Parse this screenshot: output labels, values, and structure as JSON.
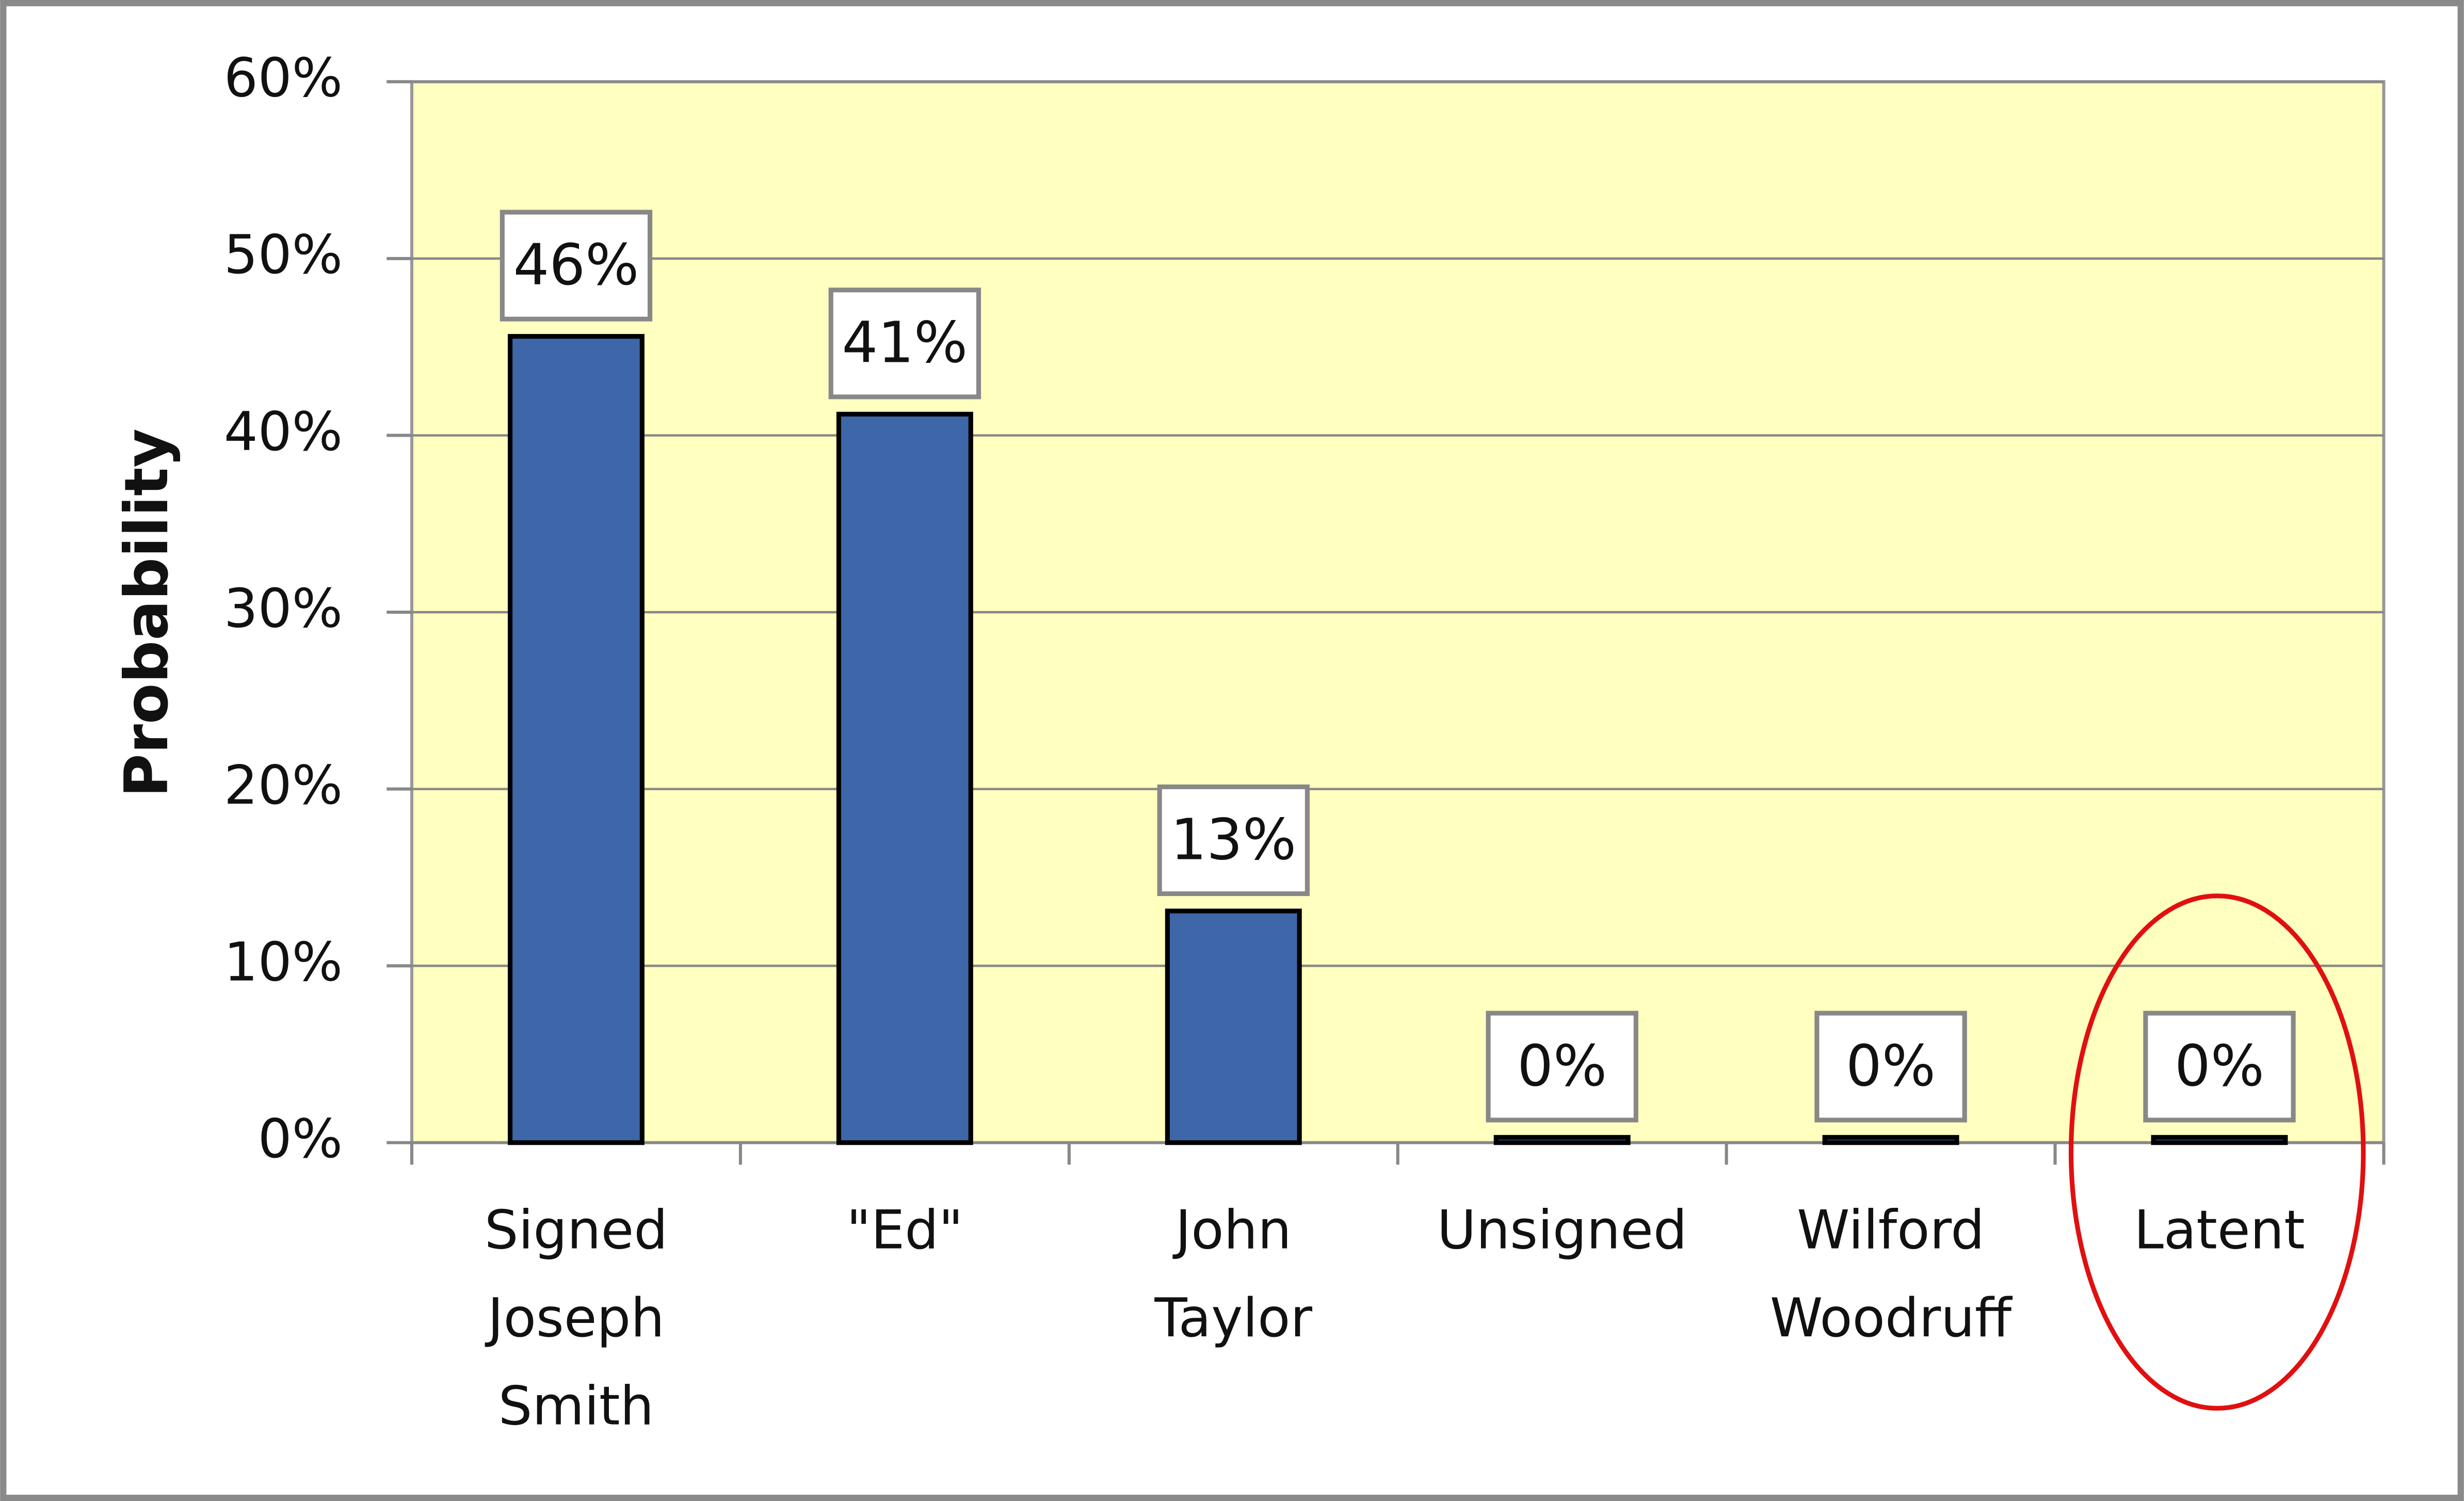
{
  "chart_data": {
    "type": "bar",
    "ylabel": "Probability",
    "categories": [
      "Signed Joseph Smith",
      "\"Ed\"",
      "John Taylor",
      "Unsigned",
      "Wilford Woodruff",
      "Latent"
    ],
    "values": [
      45.6,
      41.2,
      13.1,
      0.3,
      0.3,
      0.3
    ],
    "value_labels": [
      "46%",
      "41%",
      "13%",
      "0%",
      "0%",
      "0%"
    ],
    "color": "#3d67a8",
    "ylim": [
      0,
      60
    ],
    "yticks": [
      {
        "value": 0,
        "label": "0%"
      },
      {
        "value": 10,
        "label": "10%"
      },
      {
        "value": 20,
        "label": "20%"
      },
      {
        "value": 30,
        "label": "30%"
      },
      {
        "value": 40,
        "label": "40%"
      },
      {
        "value": 50,
        "label": "50%"
      },
      {
        "value": 60,
        "label": "60%"
      }
    ],
    "grid": true
  }
}
